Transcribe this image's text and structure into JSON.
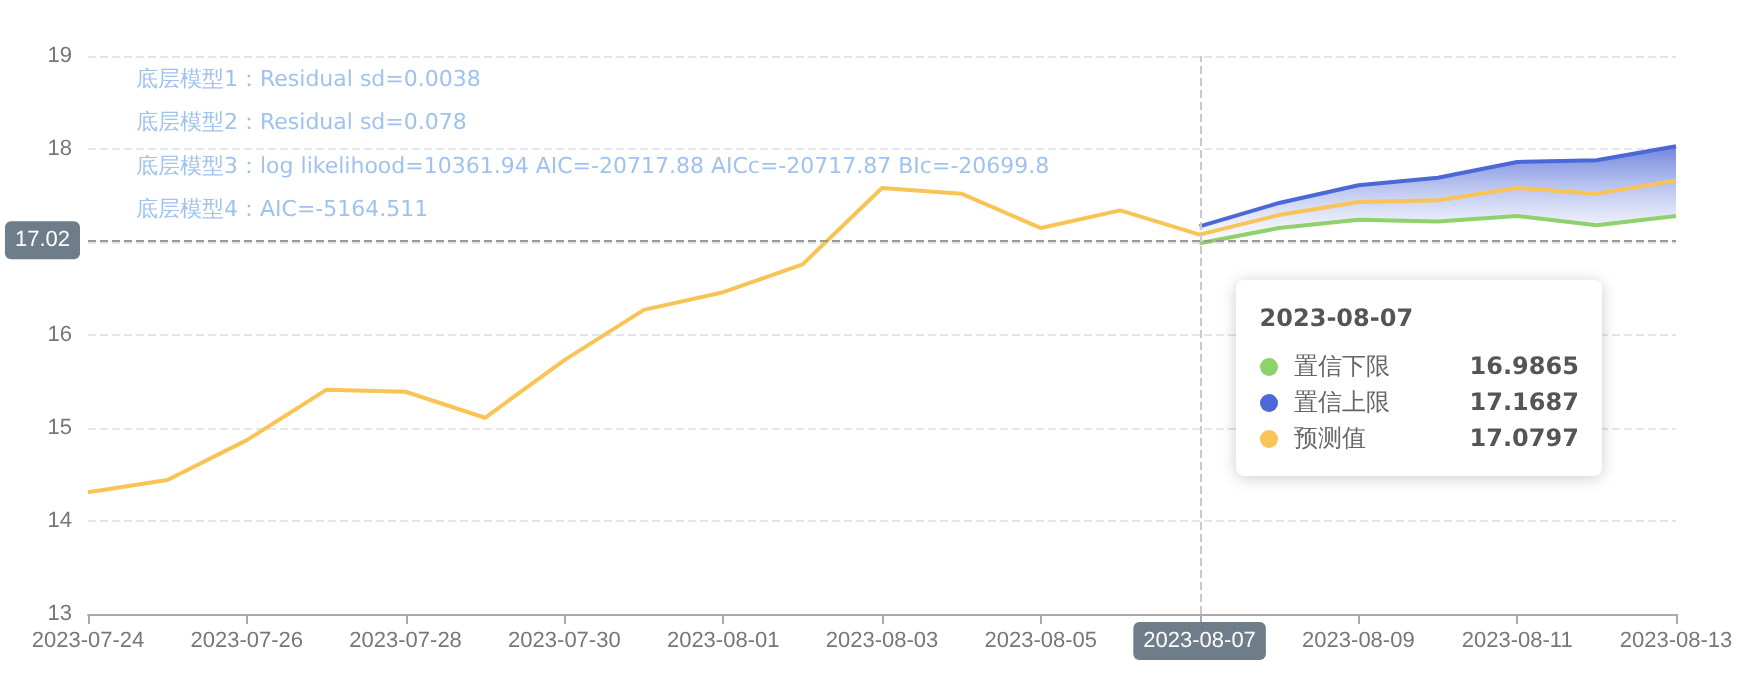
{
  "chart_data": {
    "type": "line",
    "x": [
      "2023-07-24",
      "2023-07-25",
      "2023-07-26",
      "2023-07-27",
      "2023-07-28",
      "2023-07-29",
      "2023-07-30",
      "2023-07-31",
      "2023-08-01",
      "2023-08-02",
      "2023-08-03",
      "2023-08-04",
      "2023-08-05",
      "2023-08-06",
      "2023-08-07",
      "2023-08-08",
      "2023-08-09",
      "2023-08-10",
      "2023-08-11",
      "2023-08-12",
      "2023-08-13"
    ],
    "series": [
      {
        "name": "置信下限",
        "color": "#8fd16a",
        "x": [
          "2023-08-07",
          "2023-08-08",
          "2023-08-09",
          "2023-08-10",
          "2023-08-11",
          "2023-08-12",
          "2023-08-13"
        ],
        "values": [
          16.9865,
          17.15,
          17.24,
          17.22,
          17.28,
          17.18,
          17.28
        ]
      },
      {
        "name": "置信上限",
        "color": "#4c67d6",
        "x": [
          "2023-08-07",
          "2023-08-08",
          "2023-08-09",
          "2023-08-10",
          "2023-08-11",
          "2023-08-12",
          "2023-08-13"
        ],
        "values": [
          17.1687,
          17.42,
          17.61,
          17.69,
          17.86,
          17.88,
          18.03
        ],
        "lower": [
          16.9865,
          17.15,
          17.24,
          17.22,
          17.28,
          17.18,
          17.28
        ],
        "upper": [
          17.1687,
          17.42,
          17.61,
          17.69,
          17.86,
          17.88,
          18.03
        ]
      },
      {
        "name": "预测值",
        "color": "#f9c456",
        "values": [
          14.31,
          14.44,
          14.87,
          15.41,
          15.39,
          15.11,
          15.73,
          16.27,
          16.46,
          16.76,
          17.58,
          17.52,
          17.15,
          17.34,
          17.0797,
          17.29,
          17.43,
          17.45,
          17.58,
          17.52,
          17.66
        ]
      }
    ],
    "xlim": [
      "2023-07-24",
      "2023-08-13"
    ],
    "xticks": [
      "2023-07-24",
      "2023-07-26",
      "2023-07-28",
      "2023-07-30",
      "2023-08-01",
      "2023-08-03",
      "2023-08-05",
      "2023-08-07",
      "2023-08-09",
      "2023-08-11",
      "2023-08-13"
    ],
    "ylim": [
      13,
      19
    ],
    "yticks": [
      13,
      14,
      15,
      16,
      {
        "value": 17,
        "label": null
      },
      18,
      19
    ],
    "ref_lines": [
      {
        "axis": "y",
        "value": 17.02,
        "label": "17.02"
      },
      {
        "axis": "x",
        "value": "2023-08-07",
        "label": "2023-08-07"
      }
    ],
    "annotations": [
      "底层模型1：Residual sd=0.0038",
      "底层模型2：Residual sd=0.078",
      "底层模型3：log likelihood=10361.94 AIC=-20717.88 AICc=-20717.87 BIc=-20699.8",
      "底层模型4：AIC=-5164.511",
      {
        "text": "16.9865"
      },
      {
        "text": "17.1687"
      },
      {
        "text": "17.0797"
      }
    ],
    "grid": "y",
    "legend": "right",
    "marker": "none",
    "line_style": "solid"
  }
}
